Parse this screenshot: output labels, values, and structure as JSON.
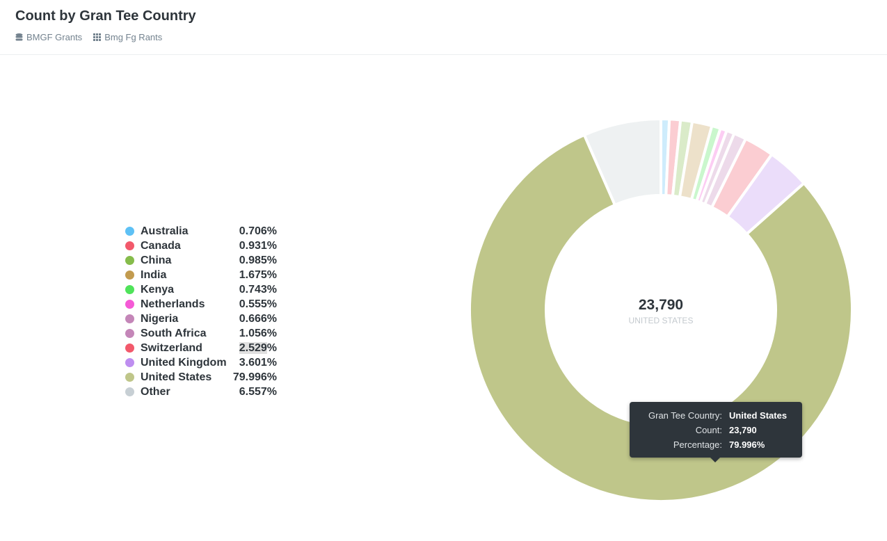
{
  "header": {
    "title": "Count by Gran Tee Country",
    "breadcrumbs": [
      {
        "label": "BMGF Grants",
        "icon": "database-icon"
      },
      {
        "label": "Bmg Fg Rants",
        "icon": "grid-icon"
      }
    ]
  },
  "chart_data": {
    "type": "pie",
    "variant": "donut",
    "title": "Count by Gran Tee Country",
    "categories": [
      "Australia",
      "Canada",
      "China",
      "India",
      "Kenya",
      "Netherlands",
      "Nigeria",
      "South Africa",
      "Switzerland",
      "United Kingdom",
      "United States",
      "Other"
    ],
    "values": [
      0.706,
      0.931,
      0.985,
      1.675,
      0.743,
      0.555,
      0.666,
      1.056,
      2.529,
      3.601,
      79.996,
      6.557
    ],
    "value_unit": "percent",
    "colors": [
      "#5ec1f5",
      "#f2596b",
      "#86bc4b",
      "#c29b4f",
      "#4fe35a",
      "#f55ad6",
      "#c486b8",
      "#c486b8",
      "#f2596b",
      "#be8ef0",
      "#bfc68a",
      "#c7cfd4"
    ],
    "highlighted": "United States",
    "legend_position": "left",
    "center": {
      "value": "23,790",
      "label": "UNITED STATES"
    },
    "tooltip": [
      {
        "key": "Gran Tee Country:",
        "value": "United States"
      },
      {
        "key": "Count:",
        "value": "23,790"
      },
      {
        "key": "Percentage:",
        "value": "79.996%"
      }
    ]
  }
}
